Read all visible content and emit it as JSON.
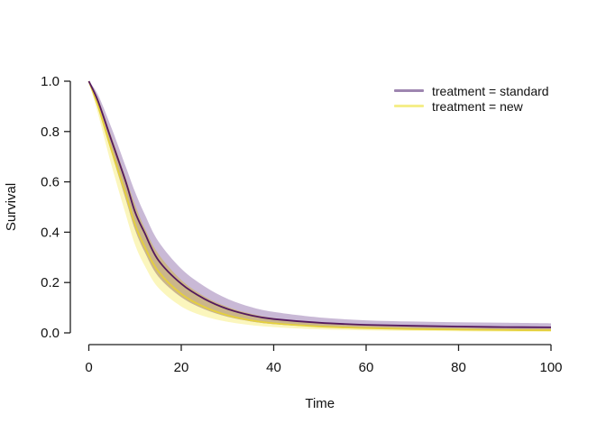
{
  "figure": {
    "background": "#ffffff",
    "title": ""
  },
  "legend": {
    "position": "top-right",
    "items": [
      {
        "label": "treatment = standard",
        "color": "#9e86b0"
      },
      {
        "label": "treatment = new",
        "color": "#f5ee8a"
      }
    ]
  },
  "chart_data": {
    "type": "line",
    "title": "",
    "xlabel": "Time",
    "ylabel": "Survival",
    "xlim": [
      0,
      100
    ],
    "ylim": [
      0.0,
      1.0
    ],
    "grid": false,
    "legend_position": "top-right",
    "x_ticks": [
      0,
      20,
      40,
      60,
      80,
      100
    ],
    "y_ticks": [
      0.0,
      0.2,
      0.4,
      0.6,
      0.8,
      1.0
    ],
    "y_tick_labels": [
      "0.0",
      "0.2",
      "0.4",
      "0.6",
      "0.8",
      "1.0"
    ],
    "x": [
      0,
      2,
      5,
      8,
      10,
      12,
      15,
      20,
      25,
      30,
      35,
      40,
      50,
      60,
      70,
      80,
      90,
      100
    ],
    "series": [
      {
        "name": "treatment = standard",
        "role": "estimate",
        "group": "standard",
        "color": "#54195e",
        "values": [
          1.0,
          0.92,
          0.76,
          0.6,
          0.48,
          0.4,
          0.29,
          0.195,
          0.135,
          0.095,
          0.07,
          0.055,
          0.04,
          0.032,
          0.028,
          0.025,
          0.023,
          0.022
        ]
      },
      {
        "name": "treatment = standard, 95% CI upper",
        "role": "ci-upper",
        "group": "standard",
        "values": [
          1.0,
          0.945,
          0.81,
          0.66,
          0.56,
          0.475,
          0.365,
          0.255,
          0.185,
          0.135,
          0.103,
          0.083,
          0.061,
          0.05,
          0.045,
          0.042,
          0.04,
          0.038
        ]
      },
      {
        "name": "treatment = standard, 95% CI lower",
        "role": "ci-lower",
        "group": "standard",
        "values": [
          1.0,
          0.895,
          0.71,
          0.53,
          0.41,
          0.325,
          0.225,
          0.142,
          0.094,
          0.064,
          0.046,
          0.035,
          0.024,
          0.018,
          0.015,
          0.013,
          0.012,
          0.011
        ]
      },
      {
        "name": "treatment = new",
        "role": "estimate",
        "group": "new",
        "color": "#e5d03c",
        "values": [
          1.0,
          0.9,
          0.72,
          0.55,
          0.43,
          0.345,
          0.245,
          0.155,
          0.103,
          0.07,
          0.05,
          0.038,
          0.025,
          0.019,
          0.015,
          0.013,
          0.011,
          0.01
        ]
      },
      {
        "name": "treatment = new, 95% CI upper",
        "role": "ci-upper",
        "group": "new",
        "values": [
          1.0,
          0.93,
          0.775,
          0.615,
          0.51,
          0.42,
          0.315,
          0.21,
          0.145,
          0.103,
          0.076,
          0.059,
          0.04,
          0.03,
          0.024,
          0.021,
          0.019,
          0.018
        ]
      },
      {
        "name": "treatment = new, 95% CI lower",
        "role": "ci-lower",
        "group": "new",
        "values": [
          1.0,
          0.87,
          0.66,
          0.47,
          0.35,
          0.27,
          0.18,
          0.105,
          0.066,
          0.044,
          0.031,
          0.023,
          0.014,
          0.01,
          0.008,
          0.006,
          0.005,
          0.005
        ]
      }
    ],
    "band_colors": {
      "standard": "#c9b9d6",
      "new": "#fbf6bd",
      "overlap": "#cbb68a"
    },
    "axis_color": "#1f1f1f",
    "text_color": "#111111"
  }
}
